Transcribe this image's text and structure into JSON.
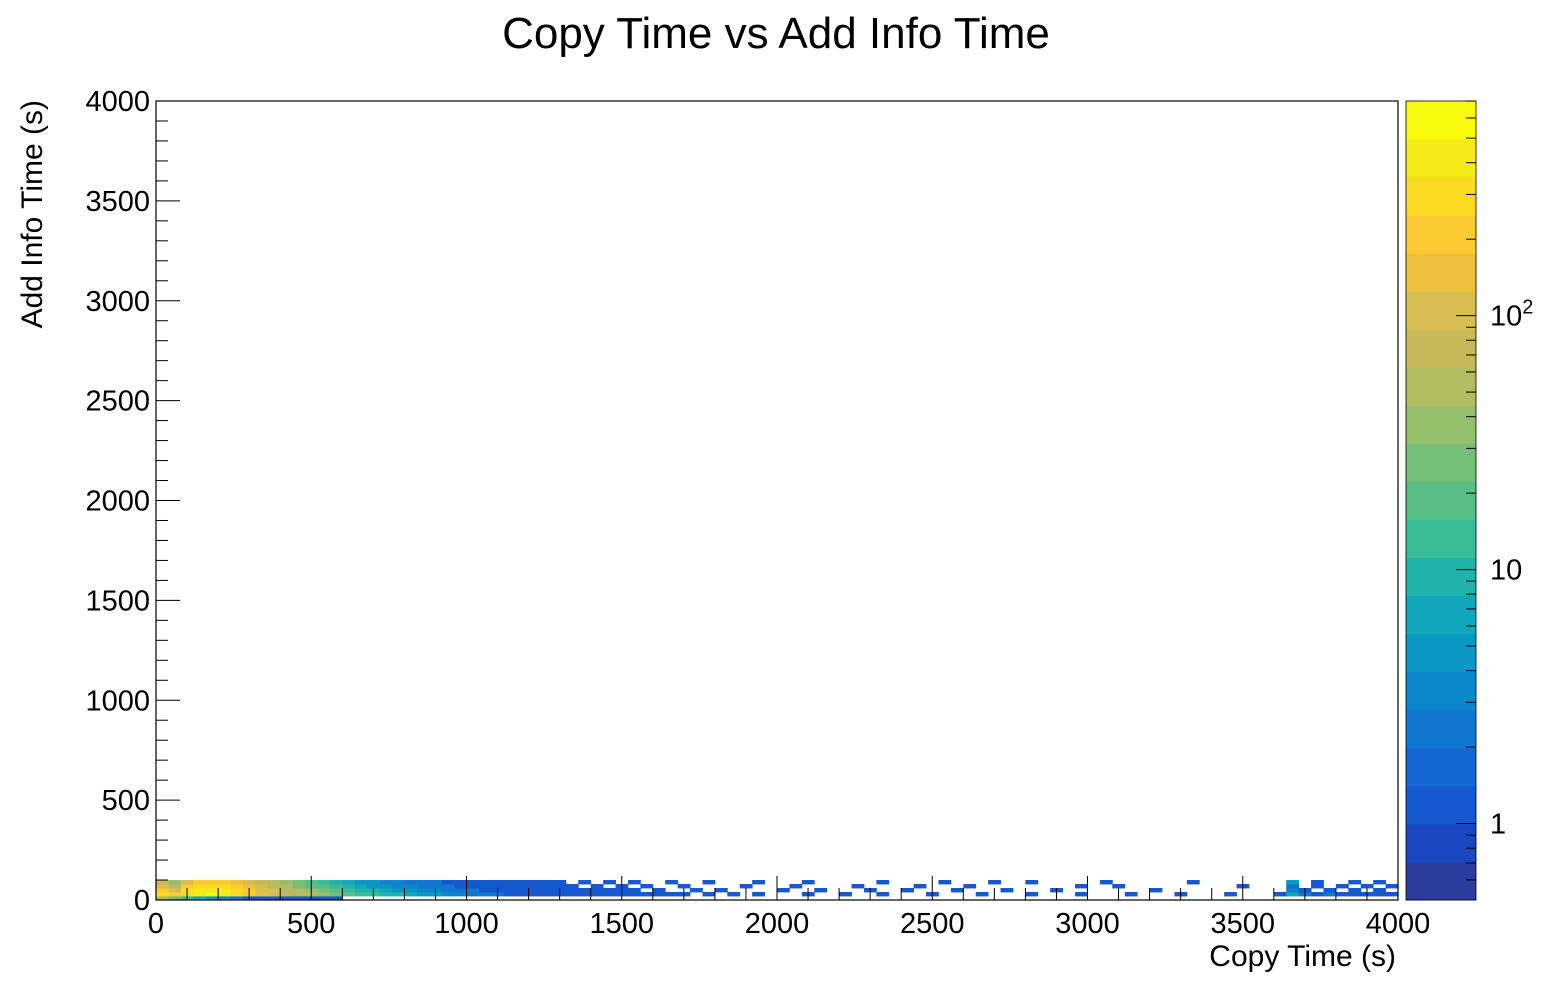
{
  "chart_data": {
    "type": "heatmap",
    "title": "Copy Time vs Add Info Time",
    "xlabel": "Copy Time (s)",
    "ylabel": "Add Info Time (s)",
    "xlim": [
      0,
      4000
    ],
    "ylim": [
      0,
      4000
    ],
    "x_ticks": [
      "0",
      "500",
      "1000",
      "1500",
      "2000",
      "2500",
      "3000",
      "3500",
      "4000"
    ],
    "y_ticks": [
      "0",
      "500",
      "1000",
      "1500",
      "2000",
      "2500",
      "3000",
      "3500",
      "4000"
    ],
    "bin_width_x": 40,
    "bin_width_y": 20,
    "color_scale": "log",
    "zlim": [
      0.5,
      700
    ],
    "z_tick_labels": [
      {
        "value": 1,
        "label": "1"
      },
      {
        "value": 10,
        "label": "10"
      },
      {
        "value": 100,
        "base": "10",
        "exp": "2"
      }
    ],
    "palette": [
      "#2b3c9e",
      "#1b47c2",
      "#1558d0",
      "#1467d3",
      "#1176cf",
      "#0c86cb",
      "#0b97c4",
      "#10a6bb",
      "#1fb3ab",
      "#3abb98",
      "#58bd86",
      "#76bf78",
      "#96bf6c",
      "#b1bd60",
      "#c7b859",
      "#d8bd50",
      "#ecc13e",
      "#fcca32",
      "#fadb22",
      "#f6eb17",
      "#f8fa0d"
    ],
    "cells": [
      [
        0,
        0,
        60
      ],
      [
        1,
        0,
        30
      ],
      [
        2,
        0,
        12
      ],
      [
        3,
        0,
        6
      ],
      [
        4,
        0,
        4
      ],
      [
        5,
        0,
        3
      ],
      [
        6,
        0,
        2
      ],
      [
        7,
        0,
        1
      ],
      [
        8,
        0,
        1
      ],
      [
        9,
        0,
        1
      ],
      [
        10,
        0,
        1
      ],
      [
        11,
        0,
        1
      ],
      [
        12,
        0,
        1
      ],
      [
        13,
        0,
        1
      ],
      [
        14,
        0,
        1
      ],
      [
        0,
        1,
        280
      ],
      [
        1,
        1,
        200
      ],
      [
        2,
        1,
        300
      ],
      [
        3,
        1,
        450
      ],
      [
        4,
        1,
        500
      ],
      [
        5,
        1,
        420
      ],
      [
        6,
        1,
        300
      ],
      [
        7,
        1,
        220
      ],
      [
        8,
        1,
        160
      ],
      [
        9,
        1,
        110
      ],
      [
        10,
        1,
        80
      ],
      [
        11,
        1,
        60
      ],
      [
        12,
        1,
        45
      ],
      [
        13,
        1,
        35
      ],
      [
        14,
        1,
        25
      ],
      [
        15,
        1,
        20
      ],
      [
        16,
        1,
        15
      ],
      [
        17,
        1,
        12
      ],
      [
        18,
        1,
        10
      ],
      [
        19,
        1,
        8
      ],
      [
        20,
        1,
        6
      ],
      [
        21,
        1,
        5
      ],
      [
        22,
        1,
        4
      ],
      [
        23,
        1,
        3
      ],
      [
        24,
        1,
        3
      ],
      [
        25,
        1,
        2
      ],
      [
        26,
        1,
        2
      ],
      [
        27,
        1,
        2
      ],
      [
        28,
        1,
        1
      ],
      [
        29,
        1,
        1
      ],
      [
        30,
        1,
        1
      ],
      [
        31,
        1,
        1
      ],
      [
        32,
        1,
        1
      ],
      [
        33,
        1,
        1
      ],
      [
        34,
        1,
        1
      ],
      [
        35,
        1,
        1
      ],
      [
        36,
        1,
        1
      ],
      [
        37,
        1,
        1
      ],
      [
        38,
        1,
        1
      ],
      [
        39,
        1,
        1
      ],
      [
        40,
        1,
        1
      ],
      [
        41,
        1,
        1
      ],
      [
        42,
        1,
        1
      ],
      [
        44,
        1,
        1
      ],
      [
        46,
        1,
        1
      ],
      [
        48,
        1,
        1
      ],
      [
        52,
        1,
        1
      ],
      [
        55,
        1,
        1
      ],
      [
        58,
        1,
        1
      ],
      [
        62,
        1,
        1
      ],
      [
        66,
        1,
        1
      ],
      [
        70,
        1,
        1
      ],
      [
        74,
        1,
        1
      ],
      [
        78,
        1,
        1
      ],
      [
        82,
        1,
        1
      ],
      [
        86,
        1,
        1
      ],
      [
        90,
        1,
        1
      ],
      [
        91,
        1,
        6
      ],
      [
        92,
        1,
        2
      ],
      [
        93,
        1,
        1
      ],
      [
        94,
        1,
        2
      ],
      [
        95,
        1,
        1
      ],
      [
        96,
        1,
        1
      ],
      [
        97,
        1,
        1
      ],
      [
        98,
        1,
        1
      ],
      [
        99,
        1,
        1
      ],
      [
        0,
        2,
        200
      ],
      [
        1,
        2,
        120
      ],
      [
        2,
        2,
        260
      ],
      [
        3,
        2,
        380
      ],
      [
        4,
        2,
        420
      ],
      [
        5,
        2,
        360
      ],
      [
        6,
        2,
        250
      ],
      [
        7,
        2,
        180
      ],
      [
        8,
        2,
        120
      ],
      [
        9,
        2,
        90
      ],
      [
        10,
        2,
        60
      ],
      [
        11,
        2,
        45
      ],
      [
        12,
        2,
        35
      ],
      [
        13,
        2,
        25
      ],
      [
        14,
        2,
        18
      ],
      [
        15,
        2,
        14
      ],
      [
        16,
        2,
        10
      ],
      [
        17,
        2,
        8
      ],
      [
        18,
        2,
        6
      ],
      [
        19,
        2,
        5
      ],
      [
        20,
        2,
        4
      ],
      [
        21,
        2,
        3
      ],
      [
        22,
        2,
        3
      ],
      [
        23,
        2,
        2
      ],
      [
        24,
        2,
        2
      ],
      [
        25,
        2,
        2
      ],
      [
        26,
        2,
        1
      ],
      [
        27,
        2,
        1
      ],
      [
        28,
        2,
        1
      ],
      [
        29,
        2,
        1
      ],
      [
        30,
        2,
        1
      ],
      [
        31,
        2,
        1
      ],
      [
        32,
        2,
        1
      ],
      [
        33,
        2,
        1
      ],
      [
        34,
        2,
        1
      ],
      [
        35,
        2,
        1
      ],
      [
        36,
        2,
        1
      ],
      [
        37,
        2,
        1
      ],
      [
        38,
        2,
        1
      ],
      [
        40,
        2,
        1
      ],
      [
        43,
        2,
        1
      ],
      [
        45,
        2,
        1
      ],
      [
        50,
        2,
        1
      ],
      [
        53,
        2,
        1
      ],
      [
        57,
        2,
        1
      ],
      [
        60,
        2,
        1
      ],
      [
        64,
        2,
        1
      ],
      [
        68,
        2,
        1
      ],
      [
        72,
        2,
        1
      ],
      [
        80,
        2,
        1
      ],
      [
        91,
        2,
        3
      ],
      [
        92,
        2,
        1
      ],
      [
        94,
        2,
        1
      ],
      [
        96,
        2,
        1
      ],
      [
        98,
        2,
        1
      ],
      [
        0,
        3,
        120
      ],
      [
        1,
        3,
        60
      ],
      [
        2,
        3,
        180
      ],
      [
        3,
        3,
        260
      ],
      [
        4,
        3,
        300
      ],
      [
        5,
        3,
        260
      ],
      [
        6,
        3,
        180
      ],
      [
        7,
        3,
        130
      ],
      [
        8,
        3,
        90
      ],
      [
        9,
        3,
        60
      ],
      [
        10,
        3,
        45
      ],
      [
        11,
        3,
        30
      ],
      [
        12,
        3,
        22
      ],
      [
        13,
        3,
        16
      ],
      [
        14,
        3,
        12
      ],
      [
        15,
        3,
        9
      ],
      [
        16,
        3,
        7
      ],
      [
        17,
        3,
        5
      ],
      [
        18,
        3,
        4
      ],
      [
        19,
        3,
        3
      ],
      [
        20,
        3,
        3
      ],
      [
        21,
        3,
        2
      ],
      [
        22,
        3,
        2
      ],
      [
        23,
        3,
        2
      ],
      [
        24,
        3,
        1
      ],
      [
        25,
        3,
        1
      ],
      [
        26,
        3,
        1
      ],
      [
        27,
        3,
        1
      ],
      [
        28,
        3,
        1
      ],
      [
        29,
        3,
        1
      ],
      [
        30,
        3,
        1
      ],
      [
        31,
        3,
        1
      ],
      [
        32,
        3,
        1
      ],
      [
        33,
        3,
        1
      ],
      [
        35,
        3,
        1
      ],
      [
        37,
        3,
        1
      ],
      [
        39,
        3,
        1
      ],
      [
        42,
        3,
        1
      ],
      [
        47,
        3,
        1
      ],
      [
        51,
        3,
        1
      ],
      [
        56,
        3,
        1
      ],
      [
        61,
        3,
        1
      ],
      [
        65,
        3,
        1
      ],
      [
        74,
        3,
        1
      ],
      [
        77,
        3,
        1
      ],
      [
        87,
        3,
        1
      ],
      [
        91,
        3,
        2
      ],
      [
        93,
        3,
        1
      ],
      [
        95,
        3,
        1
      ],
      [
        97,
        3,
        1
      ],
      [
        99,
        3,
        1
      ],
      [
        0,
        4,
        80
      ],
      [
        1,
        4,
        35
      ],
      [
        2,
        4,
        120
      ],
      [
        3,
        4,
        180
      ],
      [
        4,
        4,
        220
      ],
      [
        5,
        4,
        200
      ],
      [
        6,
        4,
        140
      ],
      [
        7,
        4,
        100
      ],
      [
        8,
        4,
        70
      ],
      [
        9,
        4,
        50
      ],
      [
        10,
        4,
        35
      ],
      [
        11,
        4,
        25
      ],
      [
        12,
        4,
        18
      ],
      [
        13,
        4,
        13
      ],
      [
        14,
        4,
        10
      ],
      [
        15,
        4,
        7
      ],
      [
        16,
        4,
        5
      ],
      [
        17,
        4,
        4
      ],
      [
        18,
        4,
        3
      ],
      [
        19,
        4,
        3
      ],
      [
        20,
        4,
        2
      ],
      [
        21,
        4,
        2
      ],
      [
        22,
        4,
        2
      ],
      [
        23,
        4,
        1
      ],
      [
        24,
        4,
        1
      ],
      [
        25,
        4,
        1
      ],
      [
        26,
        4,
        1
      ],
      [
        27,
        4,
        1
      ],
      [
        28,
        4,
        1
      ],
      [
        29,
        4,
        1
      ],
      [
        30,
        4,
        1
      ],
      [
        31,
        4,
        1
      ],
      [
        32,
        4,
        1
      ],
      [
        34,
        4,
        1
      ],
      [
        36,
        4,
        1
      ],
      [
        38,
        4,
        1
      ],
      [
        41,
        4,
        1
      ],
      [
        44,
        4,
        1
      ],
      [
        48,
        4,
        1
      ],
      [
        52,
        4,
        1
      ],
      [
        58,
        4,
        1
      ],
      [
        63,
        4,
        1
      ],
      [
        67,
        4,
        1
      ],
      [
        70,
        4,
        1
      ],
      [
        76,
        4,
        1
      ],
      [
        83,
        4,
        1
      ],
      [
        91,
        4,
        4
      ],
      [
        93,
        4,
        1
      ],
      [
        96,
        4,
        1
      ],
      [
        98,
        4,
        1
      ]
    ]
  }
}
